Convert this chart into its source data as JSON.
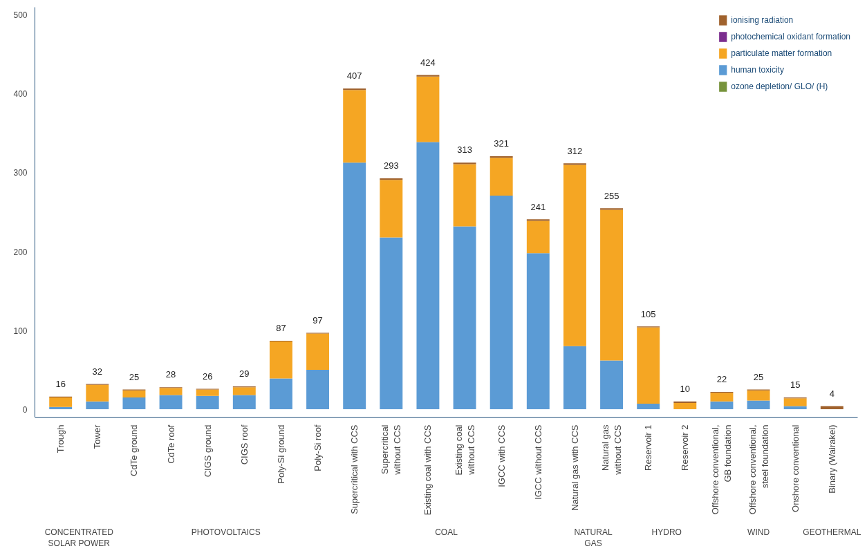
{
  "chart_data": {
    "type": "bar",
    "stacked": true,
    "categories": [
      "Trough",
      "Tower",
      "CdTe ground",
      "CdTe roof",
      "CIGS ground",
      "CIGS roof",
      "Poly-Si ground",
      "Poly-Si roof",
      "Supercritical with CCS",
      "Supercritical\nwithout CCS",
      "Existing coal with CCS",
      "Existing coal\nwithout CCS",
      "IGCC with CCS",
      "IGCC without CCS",
      "Natural gas with CCS",
      "Natural gas\nwithout CCS",
      "Reservoir 1",
      "Reservoir 2",
      "Offshore conventional,\nGB foundation",
      "Offshore conventional,\nsteel foundation",
      "Onshore conventional",
      "Binary (Wairakei)"
    ],
    "series": [
      {
        "name": "ozone depletion/ GLO/ (H)",
        "color": "#77933c",
        "values": [
          0,
          0,
          0,
          0,
          0,
          0,
          0,
          0,
          0,
          0,
          0,
          0,
          0,
          0,
          0,
          0,
          0,
          0,
          0,
          0,
          0,
          0
        ]
      },
      {
        "name": "human toxicity",
        "color": "#5b9bd5",
        "values": [
          3,
          10,
          15,
          18,
          17,
          18,
          39,
          50,
          313,
          218,
          339,
          232,
          271,
          198,
          80,
          62,
          7,
          0,
          10,
          11,
          4,
          0
        ]
      },
      {
        "name": "particulate matter formation",
        "color": "#f5a623",
        "values": [
          12,
          21,
          9,
          9,
          8,
          10,
          47,
          46,
          92,
          73,
          83,
          79,
          48,
          41,
          230,
          191,
          97,
          8,
          11,
          13,
          10,
          0
        ]
      },
      {
        "name": "photochemical oxidant formation",
        "color": "#7b2d8e",
        "values": [
          0,
          0,
          0,
          0,
          0,
          0,
          0,
          0,
          0,
          0,
          0,
          0,
          0,
          0,
          0,
          0,
          0,
          0,
          0,
          0,
          0,
          0
        ]
      },
      {
        "name": "ionising radiation",
        "color": "#a0622d",
        "values": [
          1,
          1,
          1,
          1,
          1,
          1,
          1,
          1,
          2,
          2,
          2,
          2,
          2,
          2,
          2,
          2,
          1,
          2,
          1,
          1,
          1,
          4
        ]
      }
    ],
    "totals": [
      "16",
      "32",
      "25",
      "28",
      "26",
      "29",
      "87",
      "97",
      "407",
      "293",
      "424",
      "313",
      "321",
      "241",
      "312",
      "255",
      "105",
      "10",
      "22",
      "25",
      "15",
      "4"
    ],
    "annotations": [
      "CONCENTRATED\nSOLAR POWER",
      "PHOTOVOLTAICS",
      "COAL",
      "NATURAL\nGAS",
      "HYDRO",
      "WIND",
      "GEOTHERMAL"
    ],
    "ylim": [
      -10,
      510
    ],
    "yticks": [
      0,
      100,
      200,
      300,
      400,
      500
    ],
    "grid": false,
    "legend": "top right"
  }
}
